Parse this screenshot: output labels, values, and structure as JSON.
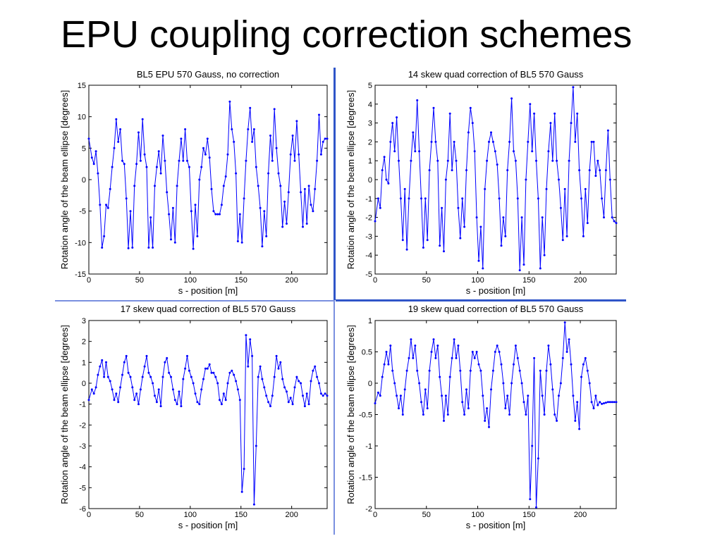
{
  "slide": {
    "title": "EPU coupling correction schemes"
  },
  "chart_data": [
    {
      "type": "line",
      "title": "BL5 EPU 570 Gauss, no correction",
      "xlabel": "s - position [m]",
      "ylabel": "Rotation angle of the beam ellipse [degrees]",
      "xlim": [
        0,
        235
      ],
      "ylim": [
        -15,
        15
      ],
      "xticks": [
        0,
        50,
        100,
        150,
        200
      ],
      "yticks": [
        -15,
        -10,
        -5,
        0,
        5,
        10,
        15
      ],
      "grid": false,
      "series": [
        {
          "color": "#0000ff",
          "x": [
            0,
            3,
            5,
            7,
            9,
            11,
            13,
            15,
            17,
            19,
            21,
            23,
            25,
            27,
            29,
            31,
            33,
            35,
            37,
            39,
            41,
            43,
            45,
            47,
            49,
            51,
            53,
            55,
            57,
            59,
            61,
            63,
            65,
            67,
            69,
            71,
            73,
            75,
            77,
            79,
            81,
            83,
            85,
            87,
            89,
            91,
            93,
            95,
            97,
            99,
            101,
            103,
            105,
            107,
            109,
            111,
            113,
            115,
            117,
            119,
            121,
            123,
            125,
            127,
            129,
            131,
            133,
            135,
            137,
            139,
            141,
            143,
            145,
            147,
            149,
            151,
            153,
            155,
            157,
            159,
            161,
            163,
            165,
            167,
            169,
            171,
            173,
            175,
            177,
            179,
            181,
            183,
            185,
            187,
            189,
            191,
            193,
            195,
            197,
            199,
            201,
            203,
            205,
            207,
            209,
            211,
            213,
            215,
            217,
            219,
            221,
            223,
            225,
            227,
            229,
            231,
            233,
            235
          ],
          "y": [
            6.5,
            3.5,
            2.5,
            4.5,
            1.0,
            -4.0,
            -10.8,
            -9.0,
            -4.0,
            -4.5,
            -1.5,
            2.0,
            5.0,
            9.6,
            6.0,
            8.0,
            3.0,
            2.5,
            -3.0,
            -10.9,
            -5.0,
            -10.8,
            -1.0,
            2.5,
            7.5,
            3.0,
            9.6,
            4.0,
            2.0,
            -10.8,
            -6.0,
            -10.8,
            -1.0,
            2.0,
            4.5,
            1.0,
            7.0,
            3.0,
            -2.0,
            -5.5,
            -9.5,
            -4.5,
            -10.0,
            -1.0,
            3.0,
            6.5,
            3.0,
            8.0,
            3.0,
            2.0,
            -5.0,
            -11.0,
            -4.0,
            -9.0,
            0.0,
            2.0,
            5.0,
            4.0,
            6.5,
            3.5,
            -1.5,
            -5.0,
            -5.5,
            -5.5,
            -5.5,
            -4.0,
            -1.0,
            0.5,
            4.0,
            12.4,
            8.0,
            6.0,
            1.0,
            -9.8,
            -5.5,
            -10.0,
            -3.0,
            3.0,
            8.0,
            11.4,
            6.0,
            8.0,
            2.0,
            -1.0,
            -4.5,
            -10.6,
            -5.0,
            -9.0,
            1.0,
            7.0,
            3.0,
            11.2,
            5.0,
            1.0,
            -1.0,
            -7.5,
            -3.5,
            -7.0,
            -2.0,
            4.0,
            7.0,
            3.0,
            9.3,
            4.0,
            -2.0,
            -7.5,
            -1.5,
            -7.0,
            -1.0,
            -4.0,
            -5.0,
            -1.5,
            3.0,
            10.3,
            4.0,
            6.0,
            6.5,
            6.5
          ]
        }
      ]
    },
    {
      "type": "line",
      "title": "14 skew quad correction of BL5 570 Gauss",
      "xlabel": "s - position [m]",
      "ylabel": "Rotation angle of the beam ellipse [degrees]",
      "xlim": [
        0,
        235
      ],
      "ylim": [
        -5,
        5
      ],
      "xticks": [
        0,
        50,
        100,
        150,
        200
      ],
      "yticks": [
        -5,
        -4,
        -3,
        -2,
        -1,
        0,
        1,
        2,
        3,
        4,
        5
      ],
      "grid": false,
      "series": [
        {
          "color": "#0000ff",
          "x": [
            0,
            3,
            5,
            7,
            9,
            11,
            13,
            15,
            17,
            19,
            21,
            23,
            25,
            27,
            29,
            31,
            33,
            35,
            37,
            39,
            41,
            43,
            45,
            47,
            49,
            51,
            53,
            55,
            57,
            59,
            61,
            63,
            65,
            67,
            69,
            71,
            73,
            75,
            77,
            79,
            81,
            83,
            85,
            87,
            89,
            91,
            93,
            95,
            97,
            99,
            101,
            103,
            105,
            107,
            109,
            111,
            113,
            115,
            117,
            119,
            121,
            123,
            125,
            127,
            129,
            131,
            133,
            135,
            137,
            139,
            141,
            143,
            145,
            147,
            149,
            151,
            153,
            155,
            157,
            159,
            161,
            163,
            165,
            167,
            169,
            171,
            173,
            175,
            177,
            179,
            181,
            183,
            185,
            187,
            189,
            191,
            193,
            195,
            197,
            199,
            201,
            203,
            205,
            207,
            209,
            211,
            213,
            215,
            217,
            219,
            221,
            223,
            225,
            227,
            229,
            231,
            233,
            235
          ],
          "y": [
            -2.2,
            -1.0,
            -1.5,
            0.5,
            1.2,
            0.0,
            -0.2,
            2.0,
            3.0,
            1.5,
            3.3,
            1.0,
            -1.0,
            -3.2,
            -0.5,
            -3.7,
            -1.0,
            1.0,
            2.5,
            1.5,
            4.2,
            1.5,
            -1.0,
            -3.6,
            -1.0,
            -3.2,
            0.5,
            2.0,
            3.8,
            2.0,
            1.0,
            -3.5,
            -1.5,
            -3.8,
            0.0,
            1.0,
            3.5,
            0.5,
            2.0,
            1.0,
            -1.5,
            -3.1,
            -1.0,
            -2.5,
            0.5,
            2.5,
            3.8,
            3.0,
            1.5,
            -2.0,
            -4.3,
            -2.5,
            -4.7,
            -0.5,
            1.0,
            2.0,
            2.5,
            2.0,
            1.5,
            0.8,
            -1.0,
            -3.5,
            -2.0,
            -3.0,
            0.5,
            2.0,
            4.3,
            1.5,
            1.0,
            -1.0,
            -4.8,
            -2.0,
            -4.5,
            0.0,
            2.0,
            4.0,
            1.5,
            3.5,
            1.0,
            -1.0,
            -4.7,
            -2.0,
            -4.0,
            -0.5,
            1.5,
            3.0,
            1.0,
            3.5,
            1.0,
            0.0,
            -1.5,
            -3.2,
            -0.5,
            -3.0,
            1.0,
            3.0,
            4.9,
            2.0,
            3.5,
            0.5,
            -1.0,
            -3.0,
            -0.5,
            -2.3,
            0.5,
            2.0,
            2.0,
            0.2,
            1.0,
            0.5,
            -1.0,
            -2.0,
            0.5,
            2.6,
            0.0,
            -2.0,
            -2.2,
            -2.3
          ]
        }
      ]
    },
    {
      "type": "line",
      "title": "17 skew quad correction of BL5 570 Gauss",
      "xlabel": "s - position [m]",
      "ylabel": "Rotation angle of the beam ellipse [degrees]",
      "xlim": [
        0,
        235
      ],
      "ylim": [
        -6,
        3
      ],
      "xticks": [
        0,
        50,
        100,
        150,
        200
      ],
      "yticks": [
        -6,
        -5,
        -4,
        -3,
        -2,
        -1,
        0,
        1,
        2,
        3
      ],
      "grid": false,
      "series": [
        {
          "color": "#0000ff",
          "x": [
            0,
            3,
            5,
            7,
            9,
            11,
            13,
            15,
            17,
            19,
            21,
            23,
            25,
            27,
            29,
            31,
            33,
            35,
            37,
            39,
            41,
            43,
            45,
            47,
            49,
            51,
            53,
            55,
            57,
            59,
            61,
            63,
            65,
            67,
            69,
            71,
            73,
            75,
            77,
            79,
            81,
            83,
            85,
            87,
            89,
            91,
            93,
            95,
            97,
            99,
            101,
            103,
            105,
            107,
            109,
            111,
            113,
            115,
            117,
            119,
            121,
            123,
            125,
            127,
            129,
            131,
            133,
            135,
            137,
            139,
            141,
            143,
            145,
            147,
            149,
            151,
            153,
            155,
            157,
            159,
            161,
            163,
            165,
            167,
            169,
            171,
            173,
            175,
            177,
            179,
            181,
            183,
            185,
            187,
            189,
            191,
            193,
            195,
            197,
            199,
            201,
            203,
            205,
            207,
            209,
            211,
            213,
            215,
            217,
            219,
            221,
            223,
            225,
            227,
            229,
            231,
            233,
            235
          ],
          "y": [
            -0.8,
            -0.3,
            -0.5,
            -0.2,
            0.4,
            0.8,
            1.1,
            0.3,
            1.0,
            0.3,
            0.1,
            -0.3,
            -0.8,
            -0.5,
            -0.9,
            -0.2,
            0.4,
            1.0,
            1.3,
            0.5,
            0.3,
            -0.2,
            -0.8,
            -0.5,
            -1.0,
            -0.3,
            0.3,
            0.8,
            1.3,
            0.5,
            0.3,
            0.0,
            -0.6,
            -0.9,
            -0.3,
            -1.1,
            0.3,
            1.0,
            1.2,
            0.5,
            0.3,
            -0.3,
            -0.8,
            -1.0,
            -0.4,
            -1.1,
            0.2,
            0.7,
            1.3,
            0.6,
            0.3,
            0.0,
            -0.5,
            -0.9,
            -1.0,
            -0.3,
            0.2,
            0.7,
            0.7,
            0.9,
            0.5,
            0.5,
            0.3,
            0.0,
            -0.8,
            -1.0,
            -0.5,
            -0.8,
            0.0,
            0.5,
            0.6,
            0.4,
            0.1,
            -0.3,
            -0.8,
            -5.2,
            -4.1,
            2.3,
            0.8,
            2.1,
            1.3,
            -5.8,
            -3.0,
            0.3,
            0.8,
            0.2,
            -0.2,
            -0.6,
            -0.9,
            -1.1,
            -0.6,
            0.3,
            1.3,
            0.7,
            1.0,
            0.2,
            -0.2,
            -0.4,
            -0.9,
            -0.7,
            -1.0,
            -0.2,
            0.3,
            0.1,
            0.0,
            -0.6,
            -1.1,
            -0.5,
            -1.0,
            0.1,
            0.6,
            0.8,
            0.3,
            0.0,
            -0.5,
            -0.6,
            -0.5,
            -0.6
          ]
        }
      ]
    },
    {
      "type": "line",
      "title": "19 skew quad correction of BL5 570 Gauss",
      "xlabel": "s - position [m]",
      "ylabel": "Rotation angle of the beam ellipse [degrees]",
      "xlim": [
        0,
        235
      ],
      "ylim": [
        -2,
        1
      ],
      "xticks": [
        0,
        50,
        100,
        150,
        200
      ],
      "yticks": [
        -2,
        -1.5,
        -1,
        -0.5,
        0,
        0.5,
        1
      ],
      "grid": false,
      "series": [
        {
          "color": "#0000ff",
          "x": [
            0,
            3,
            5,
            7,
            9,
            11,
            13,
            15,
            17,
            19,
            21,
            23,
            25,
            27,
            29,
            31,
            33,
            35,
            37,
            39,
            41,
            43,
            45,
            47,
            49,
            51,
            53,
            55,
            57,
            59,
            61,
            63,
            65,
            67,
            69,
            71,
            73,
            75,
            77,
            79,
            81,
            83,
            85,
            87,
            89,
            91,
            93,
            95,
            97,
            99,
            101,
            103,
            105,
            107,
            109,
            111,
            113,
            115,
            117,
            119,
            121,
            123,
            125,
            127,
            129,
            131,
            133,
            135,
            137,
            139,
            141,
            143,
            145,
            147,
            149,
            151,
            153,
            155,
            157,
            159,
            161,
            163,
            165,
            167,
            169,
            171,
            173,
            175,
            177,
            179,
            181,
            183,
            185,
            187,
            189,
            191,
            193,
            195,
            197,
            199,
            201,
            203,
            205,
            207,
            209,
            211,
            213,
            215,
            217,
            219,
            221,
            223,
            225,
            227,
            229,
            231,
            233,
            235
          ],
          "y": [
            -0.32,
            -0.15,
            -0.2,
            0.1,
            0.3,
            0.5,
            0.3,
            0.6,
            0.2,
            0.0,
            -0.2,
            -0.4,
            -0.2,
            -0.5,
            -0.1,
            0.2,
            0.4,
            0.7,
            0.4,
            0.6,
            0.2,
            0.0,
            -0.3,
            -0.5,
            -0.1,
            -0.4,
            0.2,
            0.5,
            0.7,
            0.4,
            0.6,
            0.1,
            -0.2,
            -0.6,
            -0.2,
            -0.5,
            0.1,
            0.4,
            0.7,
            0.4,
            0.6,
            0.2,
            -0.3,
            -0.5,
            -0.1,
            -0.4,
            0.2,
            0.5,
            0.4,
            0.5,
            0.3,
            0.2,
            -0.2,
            -0.6,
            -0.4,
            -0.7,
            -0.1,
            0.2,
            0.5,
            0.6,
            0.5,
            0.3,
            0.0,
            -0.4,
            -0.2,
            -0.5,
            0.0,
            0.3,
            0.6,
            0.4,
            0.2,
            0.0,
            -0.3,
            -0.5,
            -0.2,
            -1.85,
            -1.0,
            0.4,
            -1.98,
            -1.2,
            0.2,
            -0.2,
            -0.5,
            0.2,
            0.6,
            0.3,
            -0.1,
            -0.5,
            -0.6,
            -0.2,
            0.0,
            0.4,
            0.97,
            0.5,
            0.7,
            0.3,
            -0.2,
            -0.6,
            -0.3,
            -0.73,
            0.1,
            0.3,
            0.4,
            0.2,
            0.0,
            -0.3,
            -0.4,
            -0.2,
            -0.35,
            -0.3,
            -0.33,
            -0.32,
            -0.31,
            -0.3,
            -0.3,
            -0.3,
            -0.3,
            -0.3
          ]
        }
      ]
    }
  ]
}
